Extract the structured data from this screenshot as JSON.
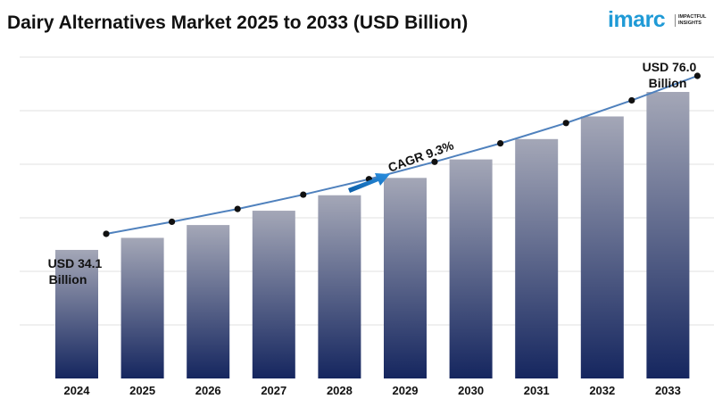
{
  "title": "Dairy Alternatives Market 2025 to 2033 (USD Billion)",
  "logo": {
    "word": "imarc",
    "tagline_1": "IMPACTFUL",
    "tagline_2": "INSIGHTS"
  },
  "colors": {
    "bar_top": "#a4a7b7",
    "bar_bottom": "#15265f",
    "line": "#4f81bd",
    "marker": "#111111",
    "arrow": "#1f77c4",
    "grid": "#e2e2e2"
  },
  "chart_data": {
    "type": "bar",
    "categories": [
      "2024",
      "2025",
      "2026",
      "2027",
      "2028",
      "2029",
      "2030",
      "2031",
      "2032",
      "2033"
    ],
    "values": [
      34.1,
      37.3,
      40.7,
      44.5,
      48.6,
      53.2,
      58.1,
      63.5,
      69.5,
      76.0
    ],
    "trend_line": true,
    "annotations": {
      "start_line1": "USD 34.1",
      "start_line2": "Billion",
      "end_line1": "USD 76.0",
      "end_line2": "Billion",
      "cagr": "CAGR 9.3%"
    },
    "grid": true,
    "legend": "none"
  }
}
